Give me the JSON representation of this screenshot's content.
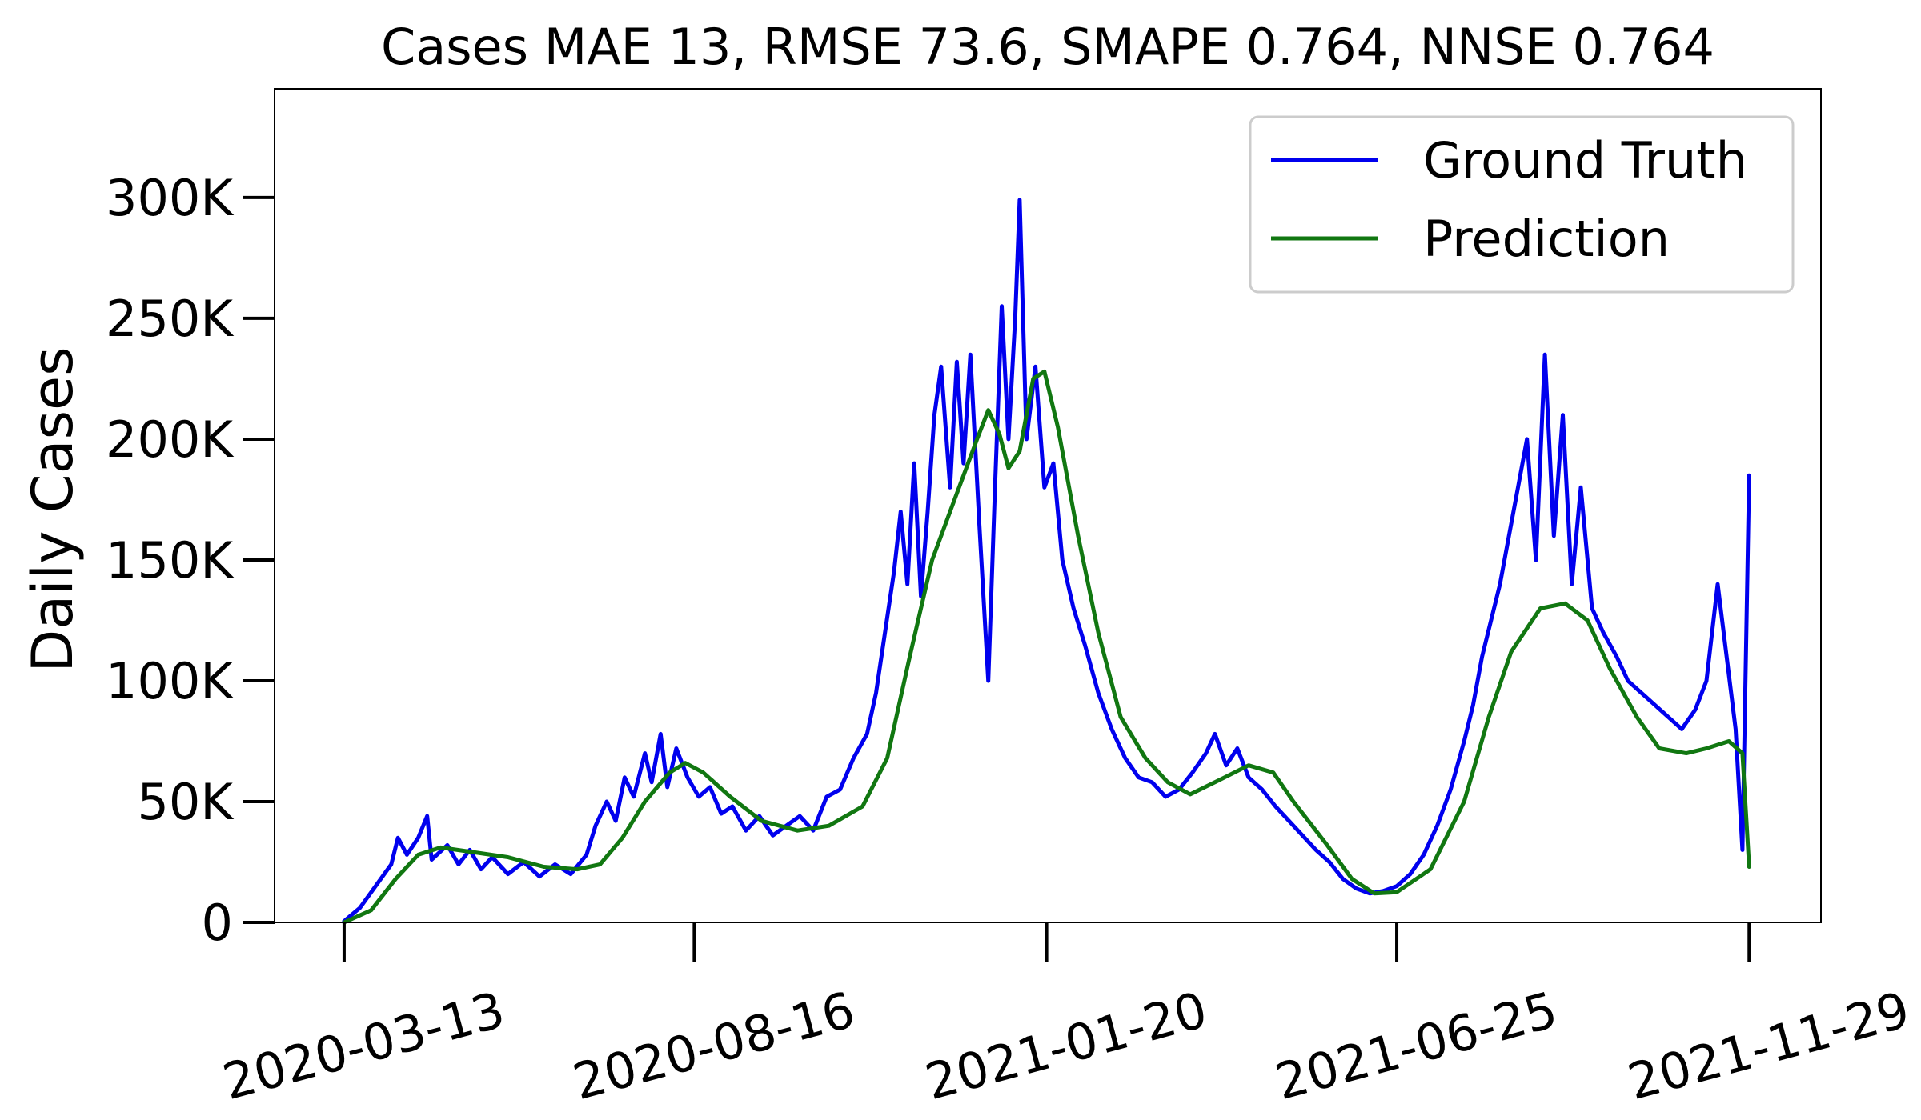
{
  "chart_data": {
    "type": "line",
    "title": "Cases MAE 13, RMSE 73.6, SMAPE 0.764, NNSE 0.764",
    "xlabel": "",
    "ylabel": "Daily Cases",
    "x_range": [
      "2020-03-13",
      "2021-11-29"
    ],
    "xlim": [
      "2020-02-11",
      "2021-12-31"
    ],
    "ylim": [
      0,
      345000
    ],
    "x_ticks": [
      "2020-03-13",
      "2020-08-16",
      "2021-01-20",
      "2021-06-25",
      "2021-11-29"
    ],
    "y_ticks": [
      0,
      50000,
      100000,
      150000,
      200000,
      250000,
      300000
    ],
    "y_tick_labels": [
      "0",
      "50K",
      "100K",
      "150K",
      "200K",
      "250K",
      "300K"
    ],
    "grid": false,
    "legend_position": "top-right",
    "series": [
      {
        "name": "Ground Truth",
        "color": "#0000ee",
        "points": [
          [
            "2020-03-13",
            500
          ],
          [
            "2020-03-20",
            6000
          ],
          [
            "2020-03-27",
            15000
          ],
          [
            "2020-04-03",
            24000
          ],
          [
            "2020-04-06",
            35000
          ],
          [
            "2020-04-10",
            28000
          ],
          [
            "2020-04-15",
            35000
          ],
          [
            "2020-04-19",
            44000
          ],
          [
            "2020-04-21",
            26000
          ],
          [
            "2020-04-28",
            32000
          ],
          [
            "2020-05-03",
            24000
          ],
          [
            "2020-05-08",
            30000
          ],
          [
            "2020-05-13",
            22000
          ],
          [
            "2020-05-18",
            27000
          ],
          [
            "2020-05-25",
            20000
          ],
          [
            "2020-06-01",
            25000
          ],
          [
            "2020-06-08",
            19000
          ],
          [
            "2020-06-15",
            24000
          ],
          [
            "2020-06-22",
            20000
          ],
          [
            "2020-06-29",
            28000
          ],
          [
            "2020-07-03",
            40000
          ],
          [
            "2020-07-08",
            50000
          ],
          [
            "2020-07-12",
            42000
          ],
          [
            "2020-07-16",
            60000
          ],
          [
            "2020-07-20",
            52000
          ],
          [
            "2020-07-25",
            70000
          ],
          [
            "2020-07-28",
            58000
          ],
          [
            "2020-08-01",
            78000
          ],
          [
            "2020-08-04",
            56000
          ],
          [
            "2020-08-08",
            72000
          ],
          [
            "2020-08-13",
            60000
          ],
          [
            "2020-08-18",
            52000
          ],
          [
            "2020-08-23",
            56000
          ],
          [
            "2020-08-28",
            45000
          ],
          [
            "2020-09-02",
            48000
          ],
          [
            "2020-09-08",
            38000
          ],
          [
            "2020-09-14",
            44000
          ],
          [
            "2020-09-20",
            36000
          ],
          [
            "2020-09-26",
            40000
          ],
          [
            "2020-10-02",
            44000
          ],
          [
            "2020-10-08",
            38000
          ],
          [
            "2020-10-14",
            52000
          ],
          [
            "2020-10-20",
            55000
          ],
          [
            "2020-10-26",
            68000
          ],
          [
            "2020-11-01",
            78000
          ],
          [
            "2020-11-05",
            95000
          ],
          [
            "2020-11-09",
            120000
          ],
          [
            "2020-11-13",
            145000
          ],
          [
            "2020-11-16",
            170000
          ],
          [
            "2020-11-19",
            140000
          ],
          [
            "2020-11-22",
            190000
          ],
          [
            "2020-11-25",
            135000
          ],
          [
            "2020-11-28",
            170000
          ],
          [
            "2020-12-01",
            210000
          ],
          [
            "2020-12-04",
            230000
          ],
          [
            "2020-12-08",
            180000
          ],
          [
            "2020-12-11",
            232000
          ],
          [
            "2020-12-14",
            190000
          ],
          [
            "2020-12-17",
            235000
          ],
          [
            "2020-12-21",
            165000
          ],
          [
            "2020-12-25",
            100000
          ],
          [
            "2020-12-28",
            180000
          ],
          [
            "2020-12-31",
            255000
          ],
          [
            "2021-01-03",
            200000
          ],
          [
            "2021-01-06",
            250000
          ],
          [
            "2021-01-08",
            299000
          ],
          [
            "2021-01-11",
            200000
          ],
          [
            "2021-01-15",
            230000
          ],
          [
            "2021-01-19",
            180000
          ],
          [
            "2021-01-23",
            190000
          ],
          [
            "2021-01-27",
            150000
          ],
          [
            "2021-02-01",
            130000
          ],
          [
            "2021-02-06",
            115000
          ],
          [
            "2021-02-12",
            95000
          ],
          [
            "2021-02-18",
            80000
          ],
          [
            "2021-02-24",
            68000
          ],
          [
            "2021-03-02",
            60000
          ],
          [
            "2021-03-08",
            58000
          ],
          [
            "2021-03-14",
            52000
          ],
          [
            "2021-03-20",
            55000
          ],
          [
            "2021-03-26",
            62000
          ],
          [
            "2021-04-01",
            70000
          ],
          [
            "2021-04-05",
            78000
          ],
          [
            "2021-04-10",
            65000
          ],
          [
            "2021-04-15",
            72000
          ],
          [
            "2021-04-20",
            60000
          ],
          [
            "2021-04-26",
            55000
          ],
          [
            "2021-05-02",
            48000
          ],
          [
            "2021-05-08",
            42000
          ],
          [
            "2021-05-14",
            36000
          ],
          [
            "2021-05-20",
            30000
          ],
          [
            "2021-05-26",
            25000
          ],
          [
            "2021-06-01",
            18000
          ],
          [
            "2021-06-07",
            14000
          ],
          [
            "2021-06-13",
            12000
          ],
          [
            "2021-06-19",
            13000
          ],
          [
            "2021-06-25",
            15000
          ],
          [
            "2021-07-01",
            20000
          ],
          [
            "2021-07-07",
            28000
          ],
          [
            "2021-07-13",
            40000
          ],
          [
            "2021-07-19",
            55000
          ],
          [
            "2021-07-25",
            75000
          ],
          [
            "2021-07-29",
            90000
          ],
          [
            "2021-08-02",
            110000
          ],
          [
            "2021-08-06",
            125000
          ],
          [
            "2021-08-10",
            140000
          ],
          [
            "2021-08-14",
            160000
          ],
          [
            "2021-08-18",
            180000
          ],
          [
            "2021-08-22",
            200000
          ],
          [
            "2021-08-26",
            150000
          ],
          [
            "2021-08-30",
            235000
          ],
          [
            "2021-09-03",
            160000
          ],
          [
            "2021-09-07",
            210000
          ],
          [
            "2021-09-11",
            140000
          ],
          [
            "2021-09-15",
            180000
          ],
          [
            "2021-09-20",
            130000
          ],
          [
            "2021-09-25",
            120000
          ],
          [
            "2021-10-01",
            110000
          ],
          [
            "2021-10-06",
            100000
          ],
          [
            "2021-10-12",
            95000
          ],
          [
            "2021-10-18",
            90000
          ],
          [
            "2021-10-24",
            85000
          ],
          [
            "2021-10-30",
            80000
          ],
          [
            "2021-11-05",
            88000
          ],
          [
            "2021-11-10",
            100000
          ],
          [
            "2021-11-15",
            140000
          ],
          [
            "2021-11-19",
            110000
          ],
          [
            "2021-11-23",
            80000
          ],
          [
            "2021-11-26",
            30000
          ],
          [
            "2021-11-29",
            185000
          ]
        ]
      },
      {
        "name": "Prediction",
        "color": "#117711",
        "points": [
          [
            "2020-03-13",
            0
          ],
          [
            "2020-03-25",
            5000
          ],
          [
            "2020-04-05",
            18000
          ],
          [
            "2020-04-15",
            28000
          ],
          [
            "2020-04-25",
            31000
          ],
          [
            "2020-05-10",
            29000
          ],
          [
            "2020-05-25",
            27000
          ],
          [
            "2020-06-10",
            23000
          ],
          [
            "2020-06-25",
            22000
          ],
          [
            "2020-07-05",
            24000
          ],
          [
            "2020-07-15",
            35000
          ],
          [
            "2020-07-25",
            50000
          ],
          [
            "2020-08-05",
            62000
          ],
          [
            "2020-08-12",
            66000
          ],
          [
            "2020-08-20",
            62000
          ],
          [
            "2020-09-01",
            52000
          ],
          [
            "2020-09-15",
            42000
          ],
          [
            "2020-10-01",
            38000
          ],
          [
            "2020-10-15",
            40000
          ],
          [
            "2020-10-30",
            48000
          ],
          [
            "2020-11-10",
            68000
          ],
          [
            "2020-11-20",
            110000
          ],
          [
            "2020-11-30",
            150000
          ],
          [
            "2020-12-10",
            175000
          ],
          [
            "2020-12-20",
            200000
          ],
          [
            "2020-12-25",
            212000
          ],
          [
            "2020-12-30",
            202000
          ],
          [
            "2021-01-03",
            188000
          ],
          [
            "2021-01-08",
            195000
          ],
          [
            "2021-01-14",
            225000
          ],
          [
            "2021-01-19",
            228000
          ],
          [
            "2021-01-25",
            205000
          ],
          [
            "2021-02-03",
            160000
          ],
          [
            "2021-02-12",
            120000
          ],
          [
            "2021-02-22",
            85000
          ],
          [
            "2021-03-05",
            68000
          ],
          [
            "2021-03-15",
            58000
          ],
          [
            "2021-03-25",
            53000
          ],
          [
            "2021-04-05",
            58000
          ],
          [
            "2021-04-20",
            65000
          ],
          [
            "2021-05-01",
            62000
          ],
          [
            "2021-05-10",
            50000
          ],
          [
            "2021-05-25",
            32000
          ],
          [
            "2021-06-05",
            18000
          ],
          [
            "2021-06-15",
            12000
          ],
          [
            "2021-06-25",
            12500
          ],
          [
            "2021-07-10",
            22000
          ],
          [
            "2021-07-25",
            50000
          ],
          [
            "2021-08-05",
            85000
          ],
          [
            "2021-08-15",
            112000
          ],
          [
            "2021-08-28",
            130000
          ],
          [
            "2021-09-08",
            132000
          ],
          [
            "2021-09-18",
            125000
          ],
          [
            "2021-09-28",
            105000
          ],
          [
            "2021-10-10",
            85000
          ],
          [
            "2021-10-20",
            72000
          ],
          [
            "2021-11-01",
            70000
          ],
          [
            "2021-11-10",
            72000
          ],
          [
            "2021-11-20",
            75000
          ],
          [
            "2021-11-26",
            70000
          ],
          [
            "2021-11-29",
            23000
          ]
        ]
      }
    ]
  }
}
